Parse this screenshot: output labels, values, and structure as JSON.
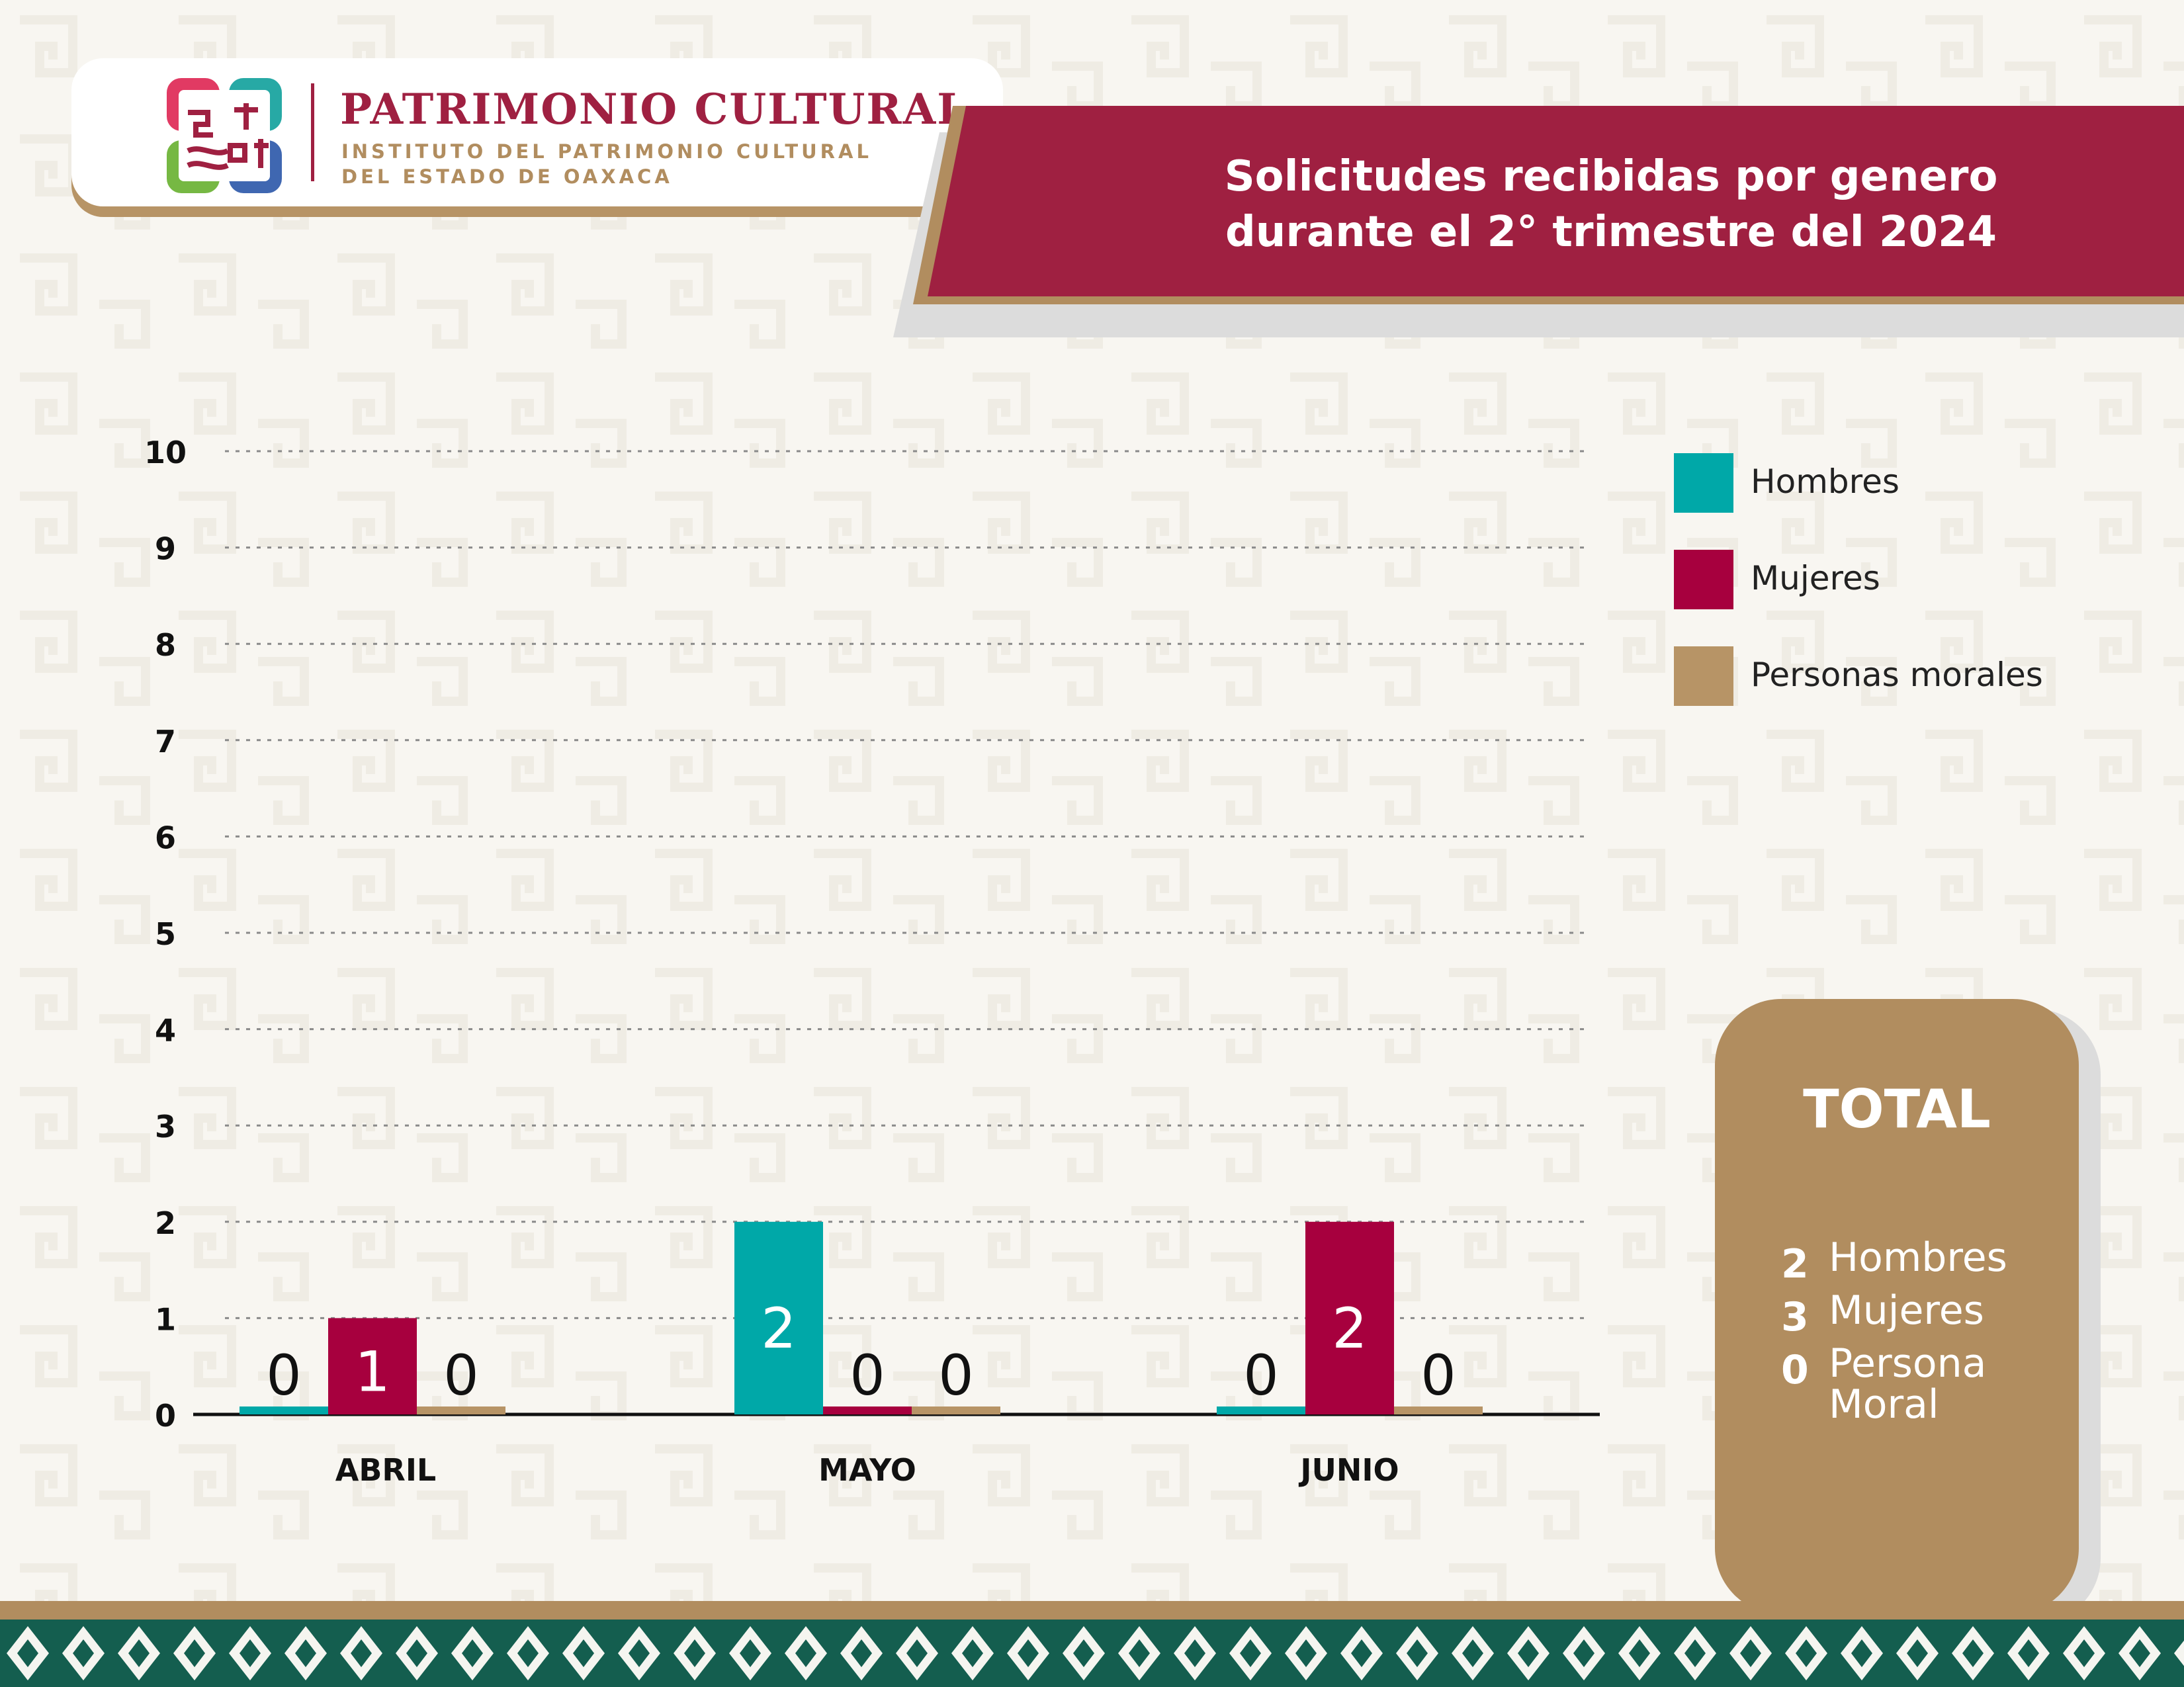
{
  "logo": {
    "title": "PATRIMONIO CULTURAL",
    "subtitle_line1": "INSTITUTO DEL PATRIMONIO CULTURAL",
    "subtitle_line2": "DEL ESTADO DE OAXACA"
  },
  "header": {
    "title_line1": "Solicitudes recibidas por genero",
    "title_line2": "durante el 2° trimestre del 2024"
  },
  "chart_data": {
    "type": "bar",
    "title": "Solicitudes recibidas por genero durante el 2° trimestre del 2024",
    "categories": [
      "ABRIL",
      "MAYO",
      "JUNIO"
    ],
    "series": [
      {
        "name": "Hombres",
        "values": [
          0,
          2,
          0
        ],
        "color": "#00a8a8"
      },
      {
        "name": "Mujeres",
        "values": [
          1,
          0,
          2
        ],
        "color": "#a7003e"
      },
      {
        "name": "Personas morales",
        "values": [
          0,
          0,
          0
        ],
        "color": "#b79466"
      }
    ],
    "ylim": [
      0,
      10
    ],
    "yticks": [
      0,
      1,
      2,
      3,
      4,
      5,
      6,
      7,
      8,
      9,
      10
    ],
    "grid": true,
    "legend_position": "right"
  },
  "total": {
    "title": "TOTAL",
    "rows": [
      {
        "value": "2",
        "label": "Hombres"
      },
      {
        "value": "3",
        "label": "Mujeres"
      },
      {
        "value": "0",
        "label": "Persona Moral"
      }
    ]
  },
  "colors": {
    "accent": "#9f2041",
    "gold": "#b18d5f",
    "teal": "#00a8a8",
    "footer_green": "#145e4f"
  }
}
